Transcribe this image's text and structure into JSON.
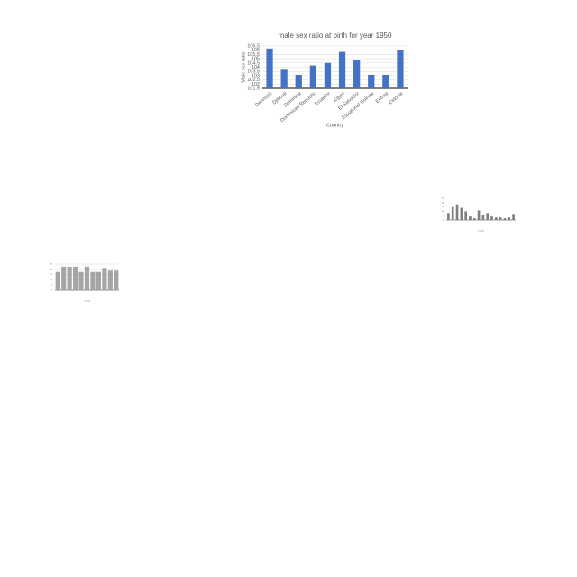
{
  "chart_data": [
    {
      "type": "bar",
      "title": "male sex ratio at birth for year 1950",
      "x_label": "Country",
      "y_label": "Male sex ratio",
      "categories": [
        "Denmark",
        "Djibouti",
        "Dominica",
        "Dominican Republic",
        "Ecuador",
        "Egypt",
        "El Salvador",
        "Equatorial Guinea",
        "Eritrea",
        "Estonia"
      ],
      "values": [
        106.2,
        103.7,
        103.1,
        104.2,
        104.5,
        105.8,
        104.8,
        103.1,
        103.1,
        106.0
      ],
      "color": "#4472c4",
      "ylim": [
        101.5,
        106.5
      ],
      "yticks": [
        101.5,
        102,
        102.5,
        103,
        103.5,
        104,
        104.5,
        105,
        105.5,
        106,
        106.5
      ],
      "grid": true
    },
    {
      "type": "bar",
      "x_label": "Country",
      "categories": [
        null,
        null,
        null,
        null,
        null,
        null,
        null,
        null,
        null,
        null,
        null,
        null,
        null,
        null,
        null,
        null
      ],
      "values": [
        8,
        15,
        18,
        14,
        10,
        4,
        2,
        11,
        6,
        8,
        4,
        3,
        3,
        2,
        3,
        7
      ],
      "color": "#7f7f7f",
      "ylim": [
        0,
        25
      ],
      "yticks": [
        0,
        5,
        10,
        15,
        20,
        25
      ],
      "grid": false
    },
    {
      "type": "bar",
      "x_label": "Country",
      "categories": [
        null,
        null,
        null,
        null,
        null,
        null,
        null,
        null,
        null,
        null,
        null
      ],
      "values": [
        14,
        18,
        18,
        18,
        14,
        18,
        14,
        14,
        17,
        15,
        15
      ],
      "color": "#a5a5a5",
      "ylim": [
        0,
        20
      ],
      "yticks": [
        0,
        4,
        8,
        12,
        16,
        20
      ],
      "grid": true
    }
  ]
}
